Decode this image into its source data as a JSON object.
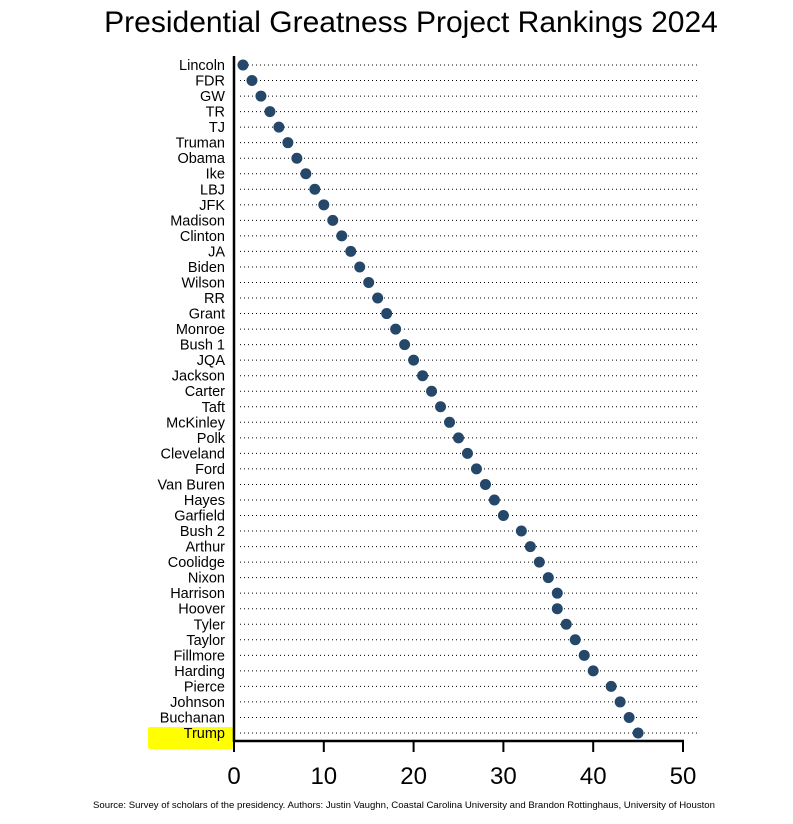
{
  "chart_data": {
    "type": "scatter",
    "subtype": "dot-plot",
    "title": "Presidential Greatness Project Rankings 2024",
    "xlabel": "",
    "ylabel": "",
    "xlim": [
      0,
      50
    ],
    "xticks": [
      0,
      10,
      20,
      30,
      40,
      50
    ],
    "grid": "dotted horizontal lines",
    "marker_color": "#25476a",
    "highlight_color": "#ffff00",
    "highlighted": "Trump",
    "categories": [
      "Lincoln",
      "FDR",
      "GW",
      "TR",
      "TJ",
      "Truman",
      "Obama",
      "Ike",
      "LBJ",
      "JFK",
      "Madison",
      "Clinton",
      "JA",
      "Biden",
      "Wilson",
      "RR",
      "Grant",
      "Monroe",
      "Bush 1",
      "JQA",
      "Jackson",
      "Carter",
      "Taft",
      "McKinley",
      "Polk",
      "Cleveland",
      "Ford",
      "Van Buren",
      "Hayes",
      "Garfield",
      "Bush 2",
      "Arthur",
      "Coolidge",
      "Nixon",
      "Harrison",
      "Hoover",
      "Tyler",
      "Taylor",
      "Fillmore",
      "Harding",
      "Pierce",
      "Johnson",
      "Buchanan",
      "Trump"
    ],
    "values": [
      1,
      2,
      3,
      4,
      5,
      6,
      7,
      8,
      9,
      10,
      11,
      12,
      13,
      14,
      15,
      16,
      17,
      18,
      19,
      20,
      21,
      22,
      23,
      24,
      25,
      26,
      27,
      28,
      29,
      30,
      32,
      33,
      34,
      35,
      36,
      36,
      37,
      38,
      39,
      40,
      42,
      43,
      44,
      45
    ],
    "source": "Source: Survey of scholars of the presidency.  Authors: Justin Vaughn, Coastal Carolina University and Brandon Rottinghaus, University of Houston"
  }
}
